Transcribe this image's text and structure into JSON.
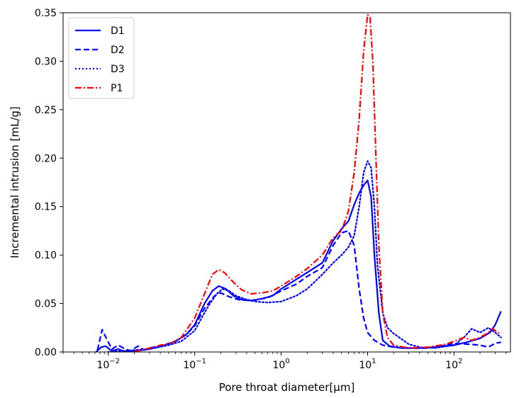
{
  "chart_data": {
    "type": "line",
    "title": "",
    "xlabel": "Pore throat diameter[µm]",
    "ylabel": "Incremental intrusion [mL/g]",
    "xscale": "log",
    "xlim": [
      0.003,
      450
    ],
    "ylim": [
      0,
      0.35
    ],
    "grid": false,
    "legend_position": "top-left",
    "x_ticks": [
      {
        "value": 0.01,
        "base": "10",
        "exp": "−2"
      },
      {
        "value": 0.1,
        "base": "10",
        "exp": "−1"
      },
      {
        "value": 1,
        "base": "10",
        "exp": "0"
      },
      {
        "value": 10,
        "base": "10",
        "exp": "1"
      },
      {
        "value": 100,
        "base": "10",
        "exp": "2"
      }
    ],
    "y_ticks": [
      "0.00",
      "0.05",
      "0.10",
      "0.15",
      "0.20",
      "0.25",
      "0.30",
      "0.35"
    ],
    "series": [
      {
        "name": "D1",
        "color": "#0000ff",
        "dash": "solid",
        "points": [
          [
            0.0072,
            0
          ],
          [
            0.0083,
            0.005
          ],
          [
            0.0093,
            0.006
          ],
          [
            0.011,
            0.001
          ],
          [
            0.013,
            0.003
          ],
          [
            0.016,
            0
          ],
          [
            0.02,
            0.001
          ],
          [
            0.025,
            0.002
          ],
          [
            0.03,
            0.003
          ],
          [
            0.04,
            0.006
          ],
          [
            0.05,
            0.008
          ],
          [
            0.06,
            0.011
          ],
          [
            0.08,
            0.018
          ],
          [
            0.1,
            0.028
          ],
          [
            0.13,
            0.05
          ],
          [
            0.16,
            0.063
          ],
          [
            0.19,
            0.068
          ],
          [
            0.23,
            0.065
          ],
          [
            0.28,
            0.058
          ],
          [
            0.35,
            0.054
          ],
          [
            0.45,
            0.053
          ],
          [
            0.6,
            0.055
          ],
          [
            0.8,
            0.058
          ],
          [
            1.0,
            0.065
          ],
          [
            1.5,
            0.075
          ],
          [
            2.0,
            0.082
          ],
          [
            3.0,
            0.092
          ],
          [
            4.0,
            0.115
          ],
          [
            5.0,
            0.127
          ],
          [
            6.0,
            0.135
          ],
          [
            7.0,
            0.152
          ],
          [
            8.0,
            0.164
          ],
          [
            9.0,
            0.172
          ],
          [
            10.0,
            0.177
          ],
          [
            11.0,
            0.16
          ],
          [
            12.0,
            0.1
          ],
          [
            13.5,
            0.04
          ],
          [
            15,
            0.012
          ],
          [
            18,
            0.006
          ],
          [
            25,
            0.004
          ],
          [
            40,
            0.004
          ],
          [
            60,
            0.005
          ],
          [
            100,
            0.007
          ],
          [
            140,
            0.01
          ],
          [
            200,
            0.014
          ],
          [
            260,
            0.02
          ],
          [
            300,
            0.028
          ],
          [
            350,
            0.042
          ]
        ]
      },
      {
        "name": "D2",
        "color": "#0000ff",
        "dash": "dashed",
        "points": [
          [
            0.0075,
            0.002
          ],
          [
            0.0085,
            0.023
          ],
          [
            0.0095,
            0.014
          ],
          [
            0.011,
            0.003
          ],
          [
            0.013,
            0.007
          ],
          [
            0.015,
            0.004
          ],
          [
            0.018,
            0.001
          ],
          [
            0.022,
            0.006
          ],
          [
            0.026,
            0.002
          ],
          [
            0.03,
            0.004
          ],
          [
            0.04,
            0.006
          ],
          [
            0.06,
            0.011
          ],
          [
            0.08,
            0.018
          ],
          [
            0.1,
            0.027
          ],
          [
            0.13,
            0.045
          ],
          [
            0.17,
            0.058
          ],
          [
            0.2,
            0.061
          ],
          [
            0.25,
            0.057
          ],
          [
            0.32,
            0.054
          ],
          [
            0.45,
            0.053
          ],
          [
            0.7,
            0.056
          ],
          [
            1.0,
            0.063
          ],
          [
            1.5,
            0.07
          ],
          [
            2.0,
            0.078
          ],
          [
            3.0,
            0.087
          ],
          [
            4.0,
            0.11
          ],
          [
            5.0,
            0.123
          ],
          [
            6.0,
            0.125
          ],
          [
            7.0,
            0.11
          ],
          [
            8.0,
            0.065
          ],
          [
            9.0,
            0.035
          ],
          [
            10,
            0.02
          ],
          [
            12,
            0.012
          ],
          [
            15,
            0.007
          ],
          [
            20,
            0.005
          ],
          [
            30,
            0.004
          ],
          [
            50,
            0.004
          ],
          [
            70,
            0.006
          ],
          [
            100,
            0.009
          ],
          [
            150,
            0.008
          ],
          [
            200,
            0.007
          ],
          [
            250,
            0.005
          ],
          [
            300,
            0.009
          ],
          [
            350,
            0.01
          ]
        ]
      },
      {
        "name": "D3",
        "color": "#0000ff",
        "dash": "dotted",
        "points": [
          [
            0.01,
            0
          ],
          [
            0.02,
            0.002
          ],
          [
            0.03,
            0.003
          ],
          [
            0.05,
            0.007
          ],
          [
            0.07,
            0.011
          ],
          [
            0.1,
            0.022
          ],
          [
            0.12,
            0.035
          ],
          [
            0.15,
            0.05
          ],
          [
            0.18,
            0.06
          ],
          [
            0.21,
            0.065
          ],
          [
            0.25,
            0.063
          ],
          [
            0.3,
            0.058
          ],
          [
            0.4,
            0.054
          ],
          [
            0.5,
            0.052
          ],
          [
            0.7,
            0.051
          ],
          [
            1.0,
            0.052
          ],
          [
            1.5,
            0.058
          ],
          [
            2.0,
            0.065
          ],
          [
            3.0,
            0.08
          ],
          [
            4.0,
            0.092
          ],
          [
            5.0,
            0.1
          ],
          [
            6.0,
            0.108
          ],
          [
            7.0,
            0.12
          ],
          [
            8.0,
            0.15
          ],
          [
            9.0,
            0.185
          ],
          [
            10.0,
            0.197
          ],
          [
            11.0,
            0.19
          ],
          [
            12.0,
            0.15
          ],
          [
            13.0,
            0.09
          ],
          [
            15,
            0.04
          ],
          [
            17,
            0.025
          ],
          [
            20,
            0.019
          ],
          [
            25,
            0.013
          ],
          [
            30,
            0.008
          ],
          [
            40,
            0.005
          ],
          [
            60,
            0.004
          ],
          [
            100,
            0.007
          ],
          [
            130,
            0.015
          ],
          [
            160,
            0.024
          ],
          [
            200,
            0.02
          ],
          [
            250,
            0.025
          ],
          [
            300,
            0.02
          ],
          [
            350,
            0.015
          ]
        ]
      },
      {
        "name": "P1",
        "color": "#ff0000",
        "dash": "dashdot",
        "points": [
          [
            0.02,
            0
          ],
          [
            0.03,
            0.004
          ],
          [
            0.04,
            0.007
          ],
          [
            0.05,
            0.008
          ],
          [
            0.07,
            0.015
          ],
          [
            0.1,
            0.035
          ],
          [
            0.13,
            0.06
          ],
          [
            0.16,
            0.08
          ],
          [
            0.19,
            0.085
          ],
          [
            0.22,
            0.082
          ],
          [
            0.28,
            0.072
          ],
          [
            0.35,
            0.064
          ],
          [
            0.45,
            0.06
          ],
          [
            0.6,
            0.061
          ],
          [
            0.8,
            0.063
          ],
          [
            1.0,
            0.068
          ],
          [
            1.5,
            0.078
          ],
          [
            2.0,
            0.086
          ],
          [
            3.0,
            0.1
          ],
          [
            4.0,
            0.118
          ],
          [
            5.0,
            0.125
          ],
          [
            6.0,
            0.145
          ],
          [
            7.0,
            0.185
          ],
          [
            8.0,
            0.24
          ],
          [
            9.0,
            0.31
          ],
          [
            10.0,
            0.348
          ],
          [
            10.7,
            0.345
          ],
          [
            11.5,
            0.3
          ],
          [
            12.5,
            0.2
          ],
          [
            13.5,
            0.11
          ],
          [
            15,
            0.04
          ],
          [
            17,
            0.015
          ],
          [
            20,
            0.007
          ],
          [
            30,
            0.004
          ],
          [
            50,
            0.005
          ],
          [
            80,
            0.008
          ],
          [
            100,
            0.011
          ],
          [
            130,
            0.015
          ],
          [
            160,
            0.012
          ],
          [
            200,
            0.015
          ],
          [
            250,
            0.02
          ],
          [
            280,
            0.024
          ],
          [
            320,
            0.02
          ],
          [
            350,
            0.019
          ]
        ]
      }
    ]
  }
}
